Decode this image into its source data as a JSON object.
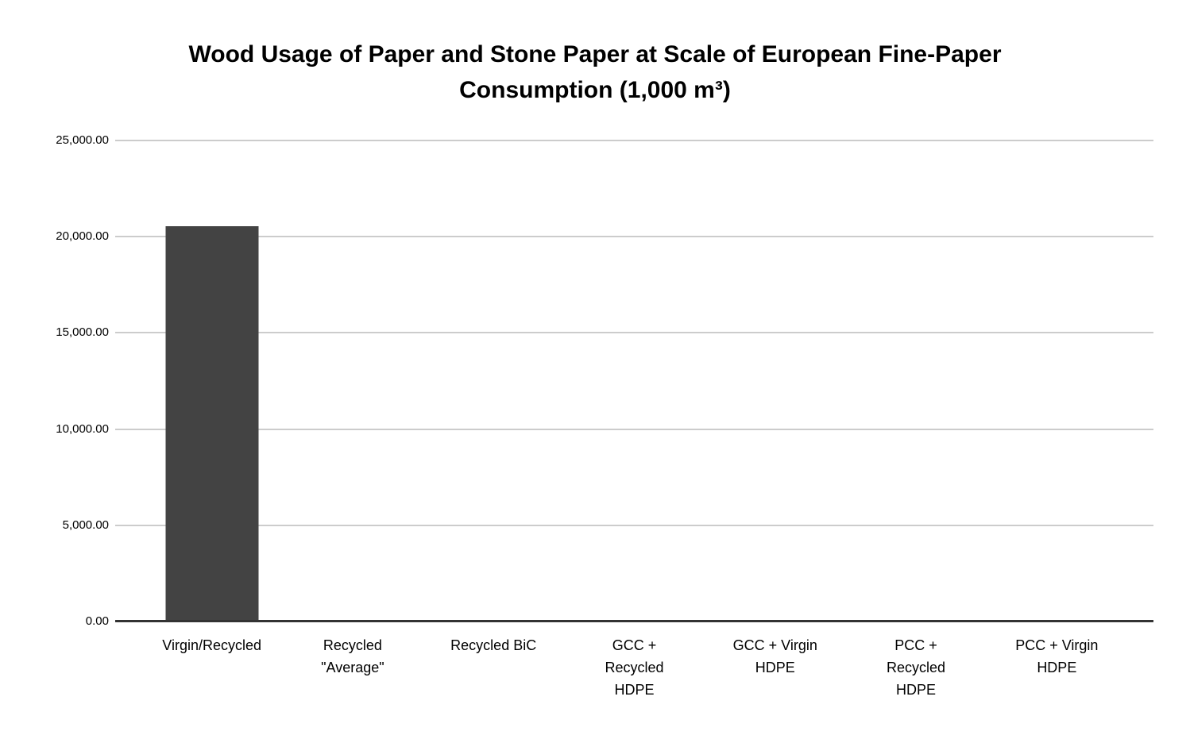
{
  "chart_data": {
    "type": "bar",
    "title": "Wood Usage of Paper and Stone Paper at Scale of European Fine-Paper Consumption (1,000 m³)",
    "title_lines": [
      "Wood Usage of Paper and Stone Paper at Scale of European Fine-Paper",
      "Consumption (1,000 m³)"
    ],
    "categories": [
      "Virgin/Recycled",
      "Recycled\n\"Average\"",
      "Recycled BiC",
      "GCC +\nRecycled\nHDPE",
      "GCC + Virgin\nHDPE",
      "PCC +\nRecycled\nHDPE",
      "PCC + Virgin\nHDPE"
    ],
    "values": [
      20550,
      0,
      0,
      0,
      0,
      0,
      0
    ],
    "xlabel": "",
    "ylabel": "",
    "ylim": [
      0,
      25000
    ],
    "yticks": [
      0,
      5000,
      10000,
      15000,
      20000,
      25000
    ],
    "ytick_labels": [
      "0.00",
      "5,000.00",
      "10,000.00",
      "15,000.00",
      "20,000.00",
      "25,000.00"
    ],
    "grid": true,
    "legend_position": "none",
    "colors": {
      "bar": "#434343",
      "gridline": "#cccccc",
      "baseline": "#333333",
      "text": "#000000",
      "background": "#ffffff"
    }
  }
}
